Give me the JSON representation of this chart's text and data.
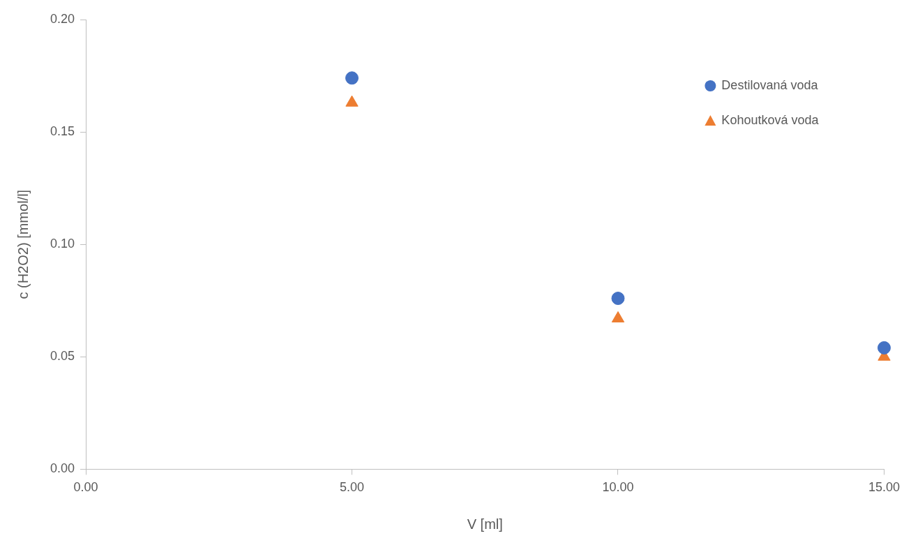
{
  "chart_data": {
    "type": "scatter",
    "xlabel": "V [ml]",
    "ylabel": "c (H2O2) [mmol/l]",
    "x": [
      5,
      10,
      15
    ],
    "series": [
      {
        "name": "Destilovaná voda",
        "color": "#4472c4",
        "marker": "circle",
        "values": [
          0.174,
          0.076,
          0.054
        ]
      },
      {
        "name": "Kohoutková voda",
        "color": "#ed7d31",
        "marker": "triangle",
        "values": [
          0.163,
          0.067,
          0.05
        ]
      }
    ],
    "xlim": [
      0,
      15
    ],
    "xticks": [
      {
        "value": 0,
        "label": "0.00"
      },
      {
        "value": 5,
        "label": "5.00"
      },
      {
        "value": 10,
        "label": "10.00"
      },
      {
        "value": 15,
        "label": "15.00"
      }
    ],
    "ylim": [
      0,
      0.2
    ],
    "yticks": [
      {
        "value": 0,
        "label": "0.00"
      },
      {
        "value": 0.05,
        "label": "0.05"
      },
      {
        "value": 0.1,
        "label": "0.10"
      },
      {
        "value": 0.15,
        "label": "0.15"
      },
      {
        "value": 0.2,
        "label": "0.20"
      }
    ],
    "grid": false,
    "legend": "top right"
  }
}
